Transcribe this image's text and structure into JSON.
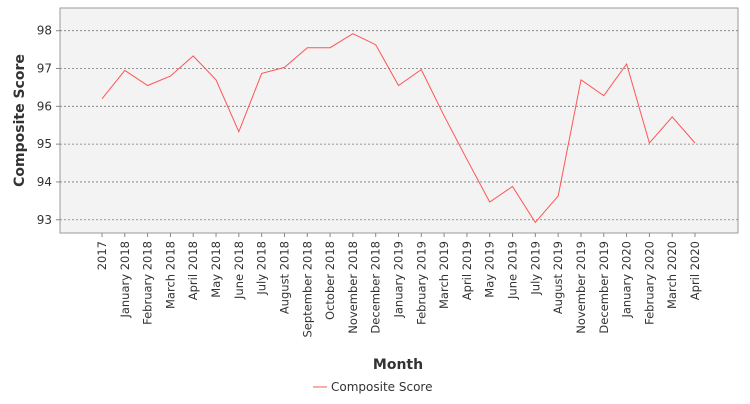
{
  "chart_data": {
    "type": "line",
    "title": "",
    "xlabel": "Month",
    "ylabel": "Composite Score",
    "ylim": [
      92.65,
      98.6
    ],
    "yticks": [
      93,
      94,
      95,
      96,
      97,
      98
    ],
    "grid": "horizontal-dotted",
    "legend_position": "bottom-center",
    "categories": [
      "2017",
      "January 2018",
      "February 2018",
      "March 2018",
      "April 2018",
      "May 2018",
      "June 2018",
      "July 2018",
      "August 2018",
      "September 2018",
      "October 2018",
      "November 2018",
      "December 2018",
      "January 2019",
      "February 2019",
      "March 2019",
      "April 2019",
      "May 2019",
      "June 2019",
      "July 2019",
      "August 2019",
      "November 2019",
      "December 2019",
      "January 2020",
      "February 2020",
      "March 2020",
      "April 2020"
    ],
    "series": [
      {
        "name": "Composite Score",
        "color": "#ff5555",
        "values": [
          96.2,
          96.95,
          96.55,
          96.8,
          97.33,
          96.7,
          95.33,
          96.87,
          97.03,
          97.55,
          97.55,
          97.92,
          97.63,
          96.55,
          96.97,
          95.75,
          94.6,
          93.47,
          93.88,
          92.93,
          93.63,
          96.7,
          96.28,
          97.12,
          95.03,
          95.72,
          95.03
        ]
      }
    ]
  }
}
